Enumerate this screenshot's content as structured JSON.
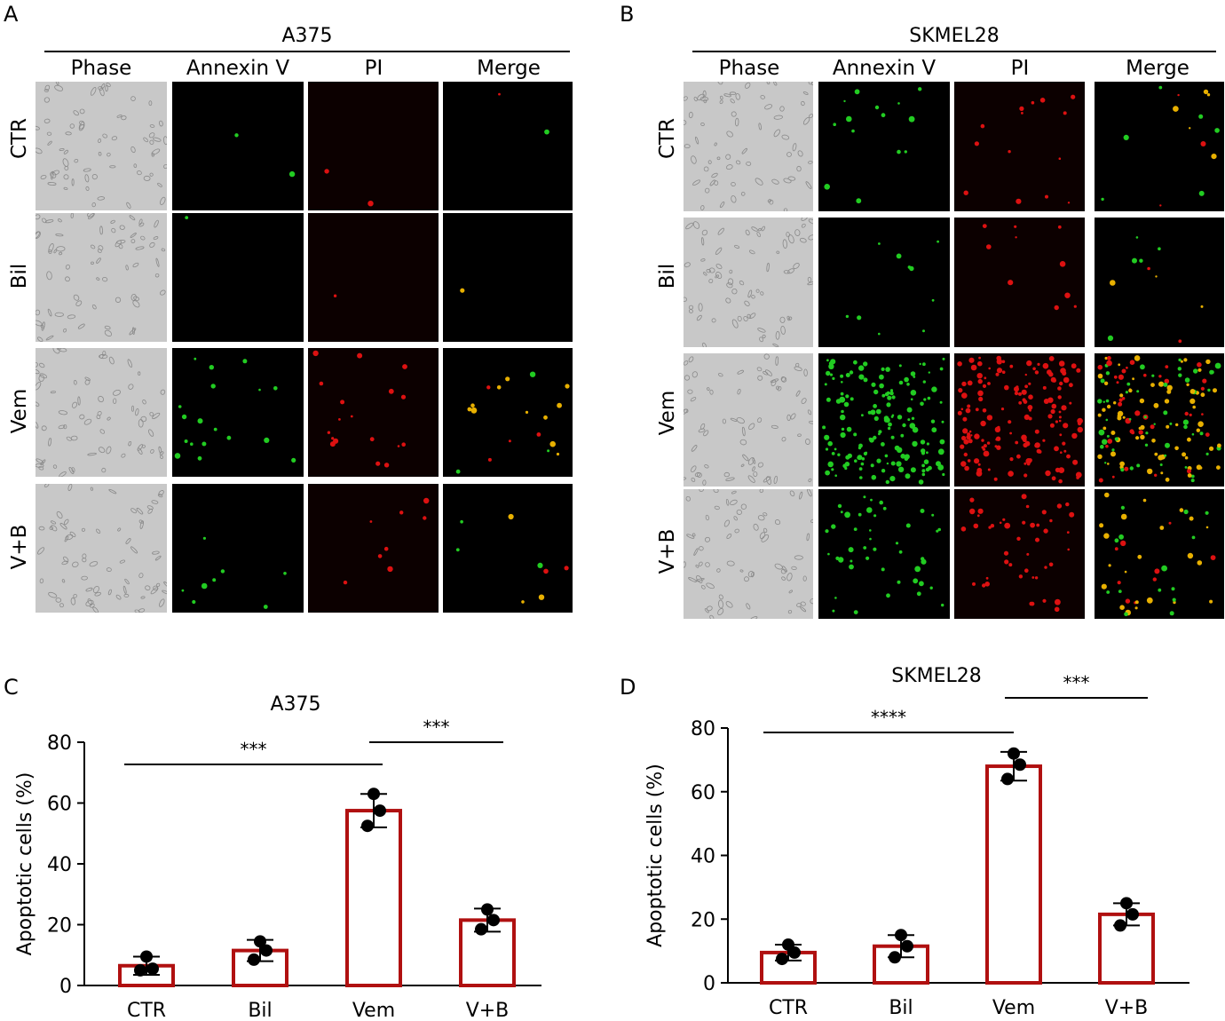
{
  "panels": {
    "A": {
      "letter": "A",
      "title": "A375"
    },
    "B": {
      "letter": "B",
      "title": "SKMEL28"
    },
    "C": {
      "letter": "C"
    },
    "D": {
      "letter": "D"
    }
  },
  "microscopy": {
    "columns": [
      "Phase",
      "Annexin V",
      "PI",
      "Merge"
    ],
    "rows": [
      "CTR",
      "Bil",
      "Vem",
      "V+B"
    ]
  },
  "colors": {
    "bar_stroke": "#b01010",
    "annexin": "#22cc22",
    "pi": "#dd1111",
    "merge": "#e8b000",
    "phase_bg": "#c8c8c8"
  },
  "chart_data": [
    {
      "type": "bar",
      "title": "A375",
      "categories": [
        "CTR",
        "Bil",
        "Vem",
        "V+B"
      ],
      "values": [
        6.5,
        11.5,
        57.5,
        21.5
      ],
      "errors": [
        3.0,
        3.5,
        5.5,
        3.8
      ],
      "points": [
        [
          9.5,
          5,
          5.5
        ],
        [
          14.5,
          8.5,
          11.5
        ],
        [
          63,
          52.5,
          57.5
        ],
        [
          25,
          18.5,
          21.5
        ]
      ],
      "ylabel": "Apoptotic cells (%)",
      "xlabel": "",
      "ylim": [
        0,
        80
      ],
      "yticks": [
        0,
        20,
        40,
        60,
        80
      ],
      "significance": [
        {
          "from": "CTR",
          "to": "Vem",
          "label": "***"
        },
        {
          "from": "Vem",
          "to": "V+B",
          "label": "***"
        }
      ]
    },
    {
      "type": "bar",
      "title": "SKMEL28",
      "categories": [
        "CTR",
        "Bil",
        "Vem",
        "V+B"
      ],
      "values": [
        9.5,
        11.5,
        68,
        21.5
      ],
      "errors": [
        2.5,
        3.5,
        4.5,
        3.5
      ],
      "points": [
        [
          12,
          7.5,
          9.5
        ],
        [
          15,
          8,
          11.5
        ],
        [
          72,
          64,
          68.5
        ],
        [
          25,
          18,
          21.5
        ]
      ],
      "ylabel": "Apoptotic cells (%)",
      "xlabel": "",
      "ylim": [
        0,
        80
      ],
      "yticks": [
        0,
        20,
        40,
        60,
        80
      ],
      "significance": [
        {
          "from": "CTR",
          "to": "Vem",
          "label": "****"
        },
        {
          "from": "Vem",
          "to": "V+B",
          "label": "***"
        }
      ]
    }
  ]
}
